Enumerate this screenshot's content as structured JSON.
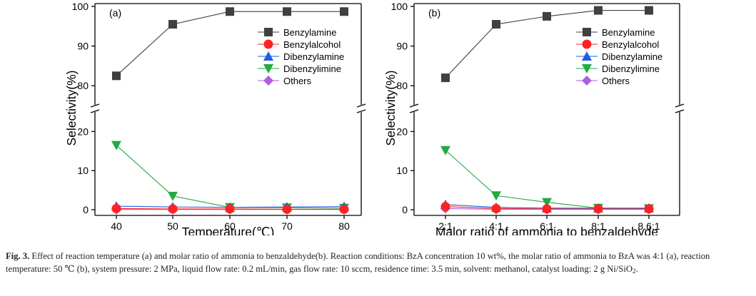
{
  "chart_data": [
    {
      "type": "line",
      "panel_label": "(a)",
      "xlabel": "Temperature(℃)",
      "ylabel": "Selectivity(%)",
      "categories": [
        "40",
        "50",
        "60",
        "70",
        "80"
      ],
      "y_upper_range": [
        75,
        100
      ],
      "y_lower_range": [
        0,
        25
      ],
      "upper_yticks": [
        "80",
        "90",
        "100"
      ],
      "lower_yticks": [
        "0",
        "10",
        "20"
      ],
      "legend_position": "top-right",
      "series": [
        {
          "name": "Benzylamine",
          "color": "#404040",
          "marker": "square",
          "values": [
            82.5,
            95.5,
            98.7,
            98.7,
            98.7
          ]
        },
        {
          "name": "Benzylalcohol",
          "color": "#ff2222",
          "marker": "circle",
          "values": [
            0.3,
            0.2,
            0.2,
            0.1,
            0.1
          ]
        },
        {
          "name": "Dibenzylamine",
          "color": "#1f5fe0",
          "marker": "triangle-up",
          "values": [
            0.9,
            0.7,
            0.6,
            0.7,
            0.8
          ]
        },
        {
          "name": "Dibenzylimine",
          "color": "#22aa44",
          "marker": "triangle-down",
          "values": [
            16.5,
            3.5,
            0.6,
            0.5,
            0.4
          ]
        },
        {
          "name": "Others",
          "color": "#b05ee0",
          "marker": "diamond",
          "values": [
            0.05,
            0.05,
            0.05,
            0.05,
            0.05
          ]
        }
      ]
    },
    {
      "type": "line",
      "panel_label": "(b)",
      "xlabel": "Malor ratio of ammonia to benzaldehyde",
      "ylabel": "Selectivity(%)",
      "categories": [
        "2:1",
        "4:1",
        "6:1",
        "8:1",
        "8.6:1"
      ],
      "y_upper_range": [
        75,
        100
      ],
      "y_lower_range": [
        0,
        25
      ],
      "upper_yticks": [
        "80",
        "90",
        "100"
      ],
      "lower_yticks": [
        "0",
        "10",
        "20"
      ],
      "legend_position": "top-right",
      "series": [
        {
          "name": "Benzylamine",
          "color": "#404040",
          "marker": "square",
          "values": [
            82.0,
            95.5,
            97.5,
            99.0,
            99.0
          ]
        },
        {
          "name": "Benzylalcohol",
          "color": "#ff2222",
          "marker": "circle",
          "values": [
            0.8,
            0.3,
            0.2,
            0.2,
            0.2
          ]
        },
        {
          "name": "Dibenzylamine",
          "color": "#1f5fe0",
          "marker": "triangle-up",
          "values": [
            1.3,
            0.6,
            0.4,
            0.4,
            0.4
          ]
        },
        {
          "name": "Dibenzylimine",
          "color": "#22aa44",
          "marker": "triangle-down",
          "values": [
            15.2,
            3.6,
            1.9,
            0.4,
            0.3
          ]
        },
        {
          "name": "Others",
          "color": "#b05ee0",
          "marker": "diamond",
          "values": [
            0.3,
            0.1,
            0.1,
            0.1,
            0.1
          ]
        }
      ]
    }
  ],
  "caption": {
    "label": "Fig. 3.",
    "text": "Effect of reaction temperature (a) and molar ratio of ammonia to benzaldehyde(b). Reaction conditions: BzA concentration 10 wt%, the molar ratio of ammonia to BzA was 4:1 (a), reaction temperature: 50 ℃ (b), system pressure: 2 MPa, liquid flow rate: 0.2 mL/min, gas flow rate: 10 sccm, residence time: 3.5 min, solvent: methanol, catalyst loading: 2 g Ni/SiO",
    "subscript": "2",
    "end": "."
  }
}
